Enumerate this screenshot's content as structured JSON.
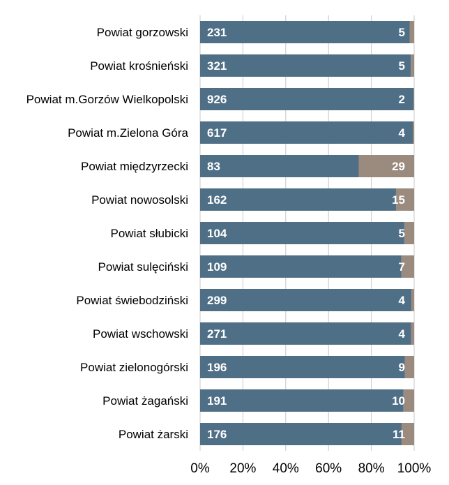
{
  "chart_data": {
    "type": "bar",
    "orientation": "horizontal",
    "stacked": "percent",
    "categories": [
      "Powiat gorzowski",
      "Powiat krośnieński",
      "Powiat m.Gorzów Wielkopolski",
      "Powiat m.Zielona Góra",
      "Powiat międzyrzecki",
      "Powiat nowosolski",
      "Powiat słubicki",
      "Powiat sulęciński",
      "Powiat świebodziński",
      "Powiat wschowski",
      "Powiat zielonogórski",
      "Powiat żagański",
      "Powiat żarski"
    ],
    "series": [
      {
        "values": [
          231,
          321,
          926,
          617,
          83,
          162,
          104,
          109,
          299,
          271,
          196,
          191,
          176
        ]
      },
      {
        "values": [
          5,
          5,
          2,
          4,
          29,
          15,
          5,
          7,
          4,
          4,
          9,
          10,
          11
        ]
      }
    ],
    "colors": [
      "#4f6f87",
      "#9b8a7e"
    ],
    "xlim": [
      0,
      100
    ],
    "xticks": [
      "0%",
      "20%",
      "40%",
      "60%",
      "80%",
      "100%"
    ],
    "title": "",
    "xlabel": "",
    "ylabel": "",
    "grid": true,
    "legend": "none"
  }
}
